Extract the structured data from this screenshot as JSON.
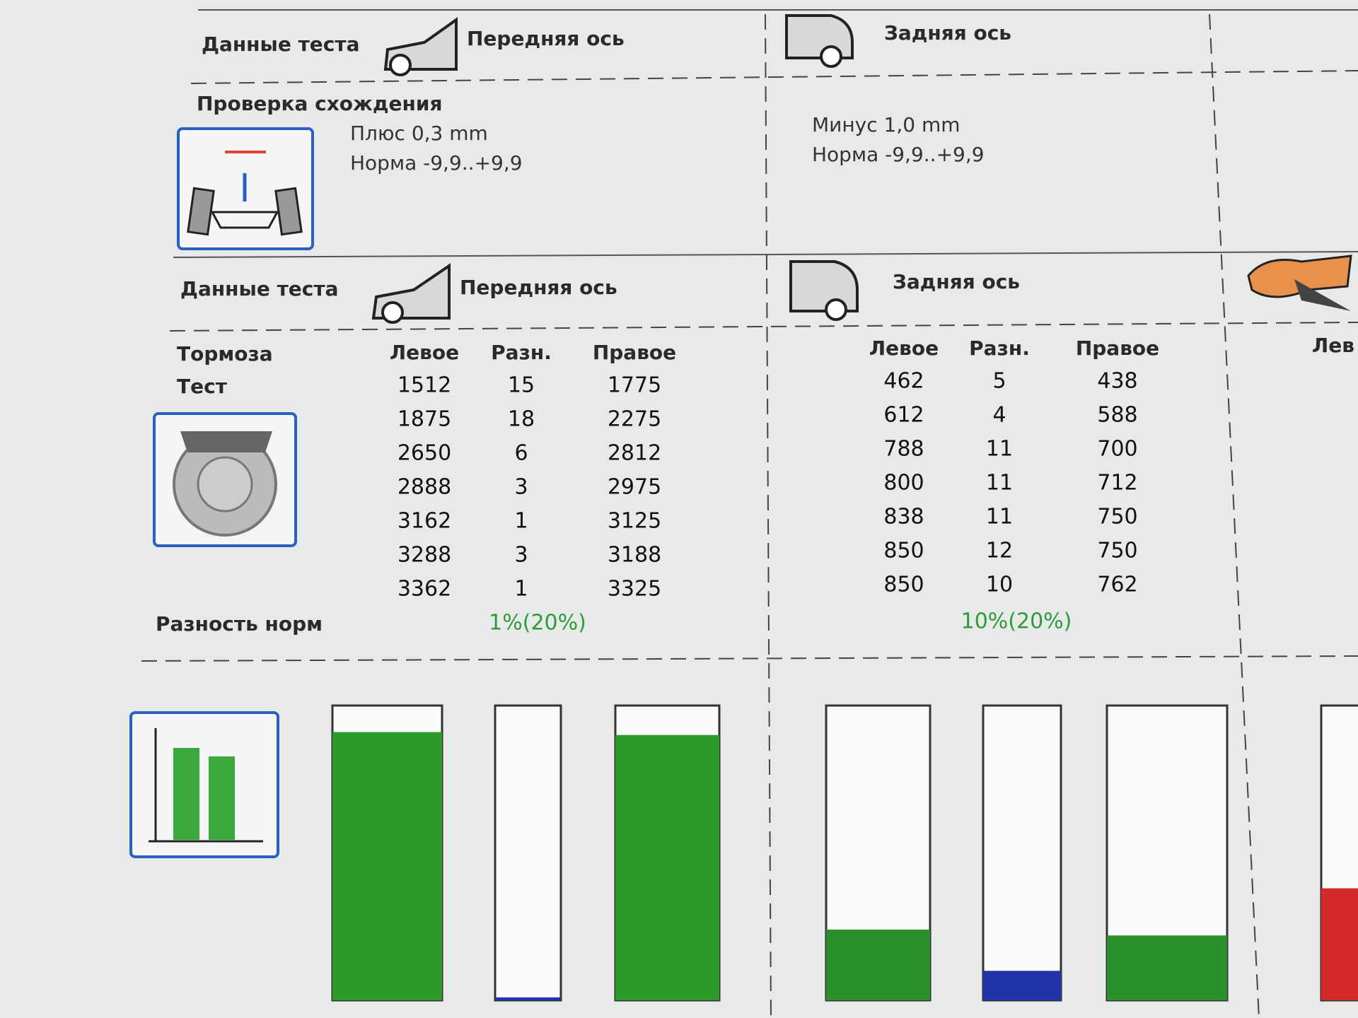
{
  "alignment": {
    "header": {
      "label": "Данные теста",
      "front": "Передняя ось",
      "rear": "Задняя ось"
    },
    "title": "Проверка схождения",
    "front": {
      "value": "Плюс 0,3 mm",
      "norm": "Норма  -9,9..+9,9"
    },
    "rear": {
      "value": "Минус 1,0 mm",
      "norm": "Норма  -9,9..+9,9"
    }
  },
  "brakes": {
    "header": {
      "label": "Данные теста",
      "front": "Передняя ось",
      "rear": "Задняя ось"
    },
    "label": "Тормоза",
    "sublabel": "Тест",
    "columns": [
      "Левое",
      "Разн.",
      "Правое"
    ],
    "extra_column": "Лев",
    "front": {
      "rows": [
        [
          1512,
          15,
          1775
        ],
        [
          1875,
          18,
          2275
        ],
        [
          2650,
          6,
          2812
        ],
        [
          2888,
          3,
          2975
        ],
        [
          3162,
          1,
          3125
        ],
        [
          3288,
          3,
          3188
        ],
        [
          3362,
          1,
          3325
        ]
      ],
      "norm": "1%(20%)"
    },
    "rear": {
      "rows": [
        [
          462,
          5,
          438
        ],
        [
          612,
          4,
          588
        ],
        [
          788,
          11,
          700
        ],
        [
          800,
          11,
          712
        ],
        [
          838,
          11,
          750
        ],
        [
          850,
          12,
          750
        ],
        [
          850,
          10,
          762
        ]
      ],
      "norm": "10%(20%)"
    },
    "norm_label": "Разность норм"
  },
  "bars": {
    "front": [
      {
        "fill": 0.91,
        "color": "#2b9a2b"
      },
      {
        "fill": 0.01,
        "color": "#2233aa"
      },
      {
        "fill": 0.9,
        "color": "#2b9a2b"
      }
    ],
    "rear": [
      {
        "fill": 0.24,
        "color": "#2b8f2b"
      },
      {
        "fill": 0.1,
        "color": "#2233aa"
      },
      {
        "fill": 0.22,
        "color": "#2b8f2b"
      }
    ],
    "extra": [
      {
        "fill": 0.38,
        "color": "#d42a2a"
      }
    ]
  }
}
